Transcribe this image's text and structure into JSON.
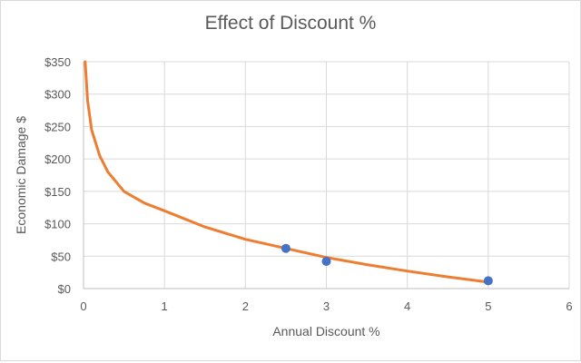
{
  "chart_data": {
    "type": "scatter",
    "title": "Effect of Discount %",
    "xlabel": "Annual Discount %",
    "ylabel": "Economic Damage $",
    "xlim": [
      0,
      6
    ],
    "ylim": [
      0,
      350
    ],
    "x_ticks": [
      0,
      1,
      2,
      3,
      4,
      5,
      6
    ],
    "x_tick_labels": [
      "0",
      "1",
      "2",
      "3",
      "4",
      "5",
      "6"
    ],
    "y_ticks": [
      0,
      50,
      100,
      150,
      200,
      250,
      300,
      350
    ],
    "y_tick_labels": [
      "$0",
      "$50",
      "$100",
      "$150",
      "$200",
      "$250",
      "$300",
      "$350"
    ],
    "grid": true,
    "legend": "none",
    "series": [
      {
        "kind": "points",
        "color": "#4472c4",
        "x": [
          2.5,
          3.0,
          5.0
        ],
        "y": [
          62,
          42,
          12
        ]
      },
      {
        "kind": "trendline",
        "color": "#ed7d31",
        "x": [
          0.02,
          0.05,
          0.1,
          0.2,
          0.3,
          0.5,
          0.75,
          1.0,
          1.5,
          2.0,
          2.5,
          3.0,
          3.5,
          4.0,
          4.5,
          5.0
        ],
        "y": [
          350,
          290,
          245,
          205,
          180,
          150,
          132,
          120,
          95,
          76,
          62,
          48,
          37,
          27,
          18,
          10
        ]
      }
    ]
  }
}
